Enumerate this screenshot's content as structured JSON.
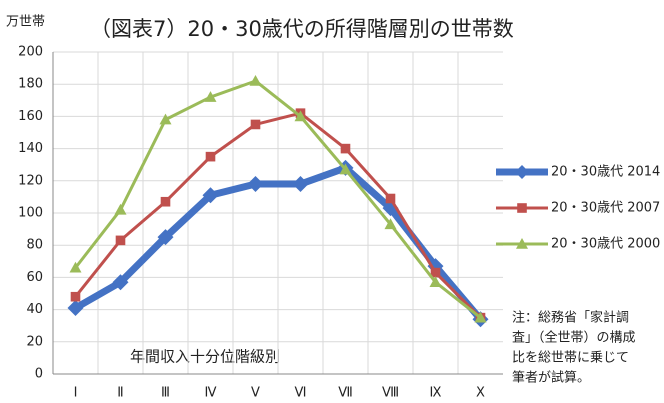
{
  "chart_data": {
    "type": "line",
    "title": "（図表7）20・30歳代の所得階層別の世帯数",
    "y_label": "万世帯",
    "annotation": "年間収入十分位階級別",
    "note": [
      "注：総務省「家計調",
      "査」（全世帯）の構成",
      "比を総世帯に乗じて",
      "筆者が試算。"
    ],
    "categories": [
      "Ⅰ",
      "Ⅱ",
      "Ⅲ",
      "Ⅳ",
      "Ⅴ",
      "Ⅵ",
      "Ⅶ",
      "Ⅷ",
      "Ⅸ",
      "Ⅹ"
    ],
    "series": [
      {
        "name": "20・30歳代 2014",
        "color": "#4472c4",
        "marker": "diamond",
        "values": [
          41,
          57,
          85,
          111,
          118,
          118,
          128,
          103,
          67,
          34
        ]
      },
      {
        "name": "20・30歳代 2007",
        "color": "#c0504d",
        "marker": "square",
        "values": [
          48,
          83,
          107,
          135,
          155,
          162,
          140,
          109,
          63,
          35
        ]
      },
      {
        "name": "20・30歳代 2000",
        "color": "#9bbb59",
        "marker": "triangle",
        "values": [
          66,
          102,
          158,
          172,
          182,
          160,
          127,
          93,
          57,
          35
        ]
      }
    ],
    "ylim": [
      0,
      200
    ],
    "yticks": [
      0,
      20,
      40,
      60,
      80,
      100,
      120,
      140,
      160,
      180,
      200
    ],
    "grid": true
  }
}
